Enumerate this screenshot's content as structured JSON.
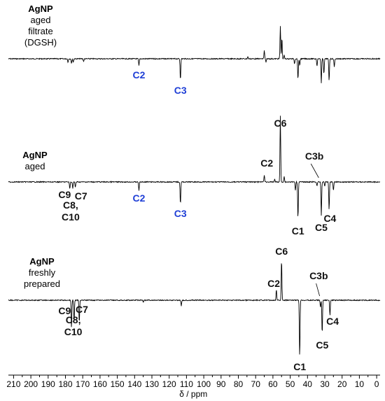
{
  "chart_data": {
    "type": "line",
    "xlabel": "δ / ppm",
    "xlim": [
      213,
      -2
    ],
    "x_reversed": true,
    "x_ticks": [
      210,
      200,
      190,
      180,
      170,
      160,
      150,
      140,
      130,
      120,
      110,
      100,
      90,
      80,
      70,
      60,
      50,
      40,
      30,
      20,
      10,
      0
    ],
    "colors": {
      "trace": "#000000",
      "free_ligand_label": "#1f3fd6",
      "peak_label": "#111111"
    },
    "spectra": [
      {
        "name_lines": [
          "AgNP",
          "aged",
          "filtrate",
          "(DGSH)"
        ],
        "peaks": [
          {
            "ppm": 178.5,
            "amp": -5
          },
          {
            "ppm": 176.5,
            "amp": -7
          },
          {
            "ppm": 175.5,
            "amp": -5
          },
          {
            "ppm": 169.5,
            "amp": -4
          },
          {
            "ppm": 137.5,
            "amp": -10
          },
          {
            "ppm": 113.5,
            "amp": -30
          },
          {
            "ppm": 74.5,
            "amp": 3
          },
          {
            "ppm": 65.0,
            "amp": 12
          },
          {
            "ppm": 64.0,
            "amp": -5
          },
          {
            "ppm": 55.7,
            "amp": 47
          },
          {
            "ppm": 54.8,
            "amp": 30
          },
          {
            "ppm": 53.5,
            "amp": 5
          },
          {
            "ppm": 47.5,
            "amp": -7
          },
          {
            "ppm": 45.5,
            "amp": -30
          },
          {
            "ppm": 44.5,
            "amp": -10
          },
          {
            "ppm": 34.5,
            "amp": -10
          },
          {
            "ppm": 32.0,
            "amp": -35
          },
          {
            "ppm": 30.5,
            "amp": -22
          },
          {
            "ppm": 27.5,
            "amp": -32
          },
          {
            "ppm": 24.5,
            "amp": -12
          }
        ],
        "labels": [
          {
            "text": "C2",
            "ppm": 137.5,
            "color": "#1f3fd6"
          },
          {
            "text": "C3",
            "ppm": 113.5,
            "color": "#1f3fd6"
          }
        ]
      },
      {
        "name_lines": [
          "AgNP",
          "aged"
        ],
        "peaks": [
          {
            "ppm": 177.5,
            "amp": -10
          },
          {
            "ppm": 175.8,
            "amp": -9
          },
          {
            "ppm": 174.3,
            "amp": -8
          },
          {
            "ppm": 137.5,
            "amp": -12
          },
          {
            "ppm": 113.5,
            "amp": -32
          },
          {
            "ppm": 65.0,
            "amp": 10
          },
          {
            "ppm": 59.0,
            "amp": 4
          },
          {
            "ppm": 55.7,
            "amp": 95
          },
          {
            "ppm": 53.5,
            "amp": 8
          },
          {
            "ppm": 47.0,
            "amp": -12
          },
          {
            "ppm": 45.5,
            "amp": -52
          },
          {
            "ppm": 34.5,
            "amp": -6
          },
          {
            "ppm": 32.0,
            "amp": -48
          },
          {
            "ppm": 30.0,
            "amp": -6
          },
          {
            "ppm": 27.5,
            "amp": -40
          },
          {
            "ppm": 25.0,
            "amp": -12
          }
        ],
        "labels": [
          {
            "text": "C2",
            "ppm": 137.5,
            "color": "#1f3fd6"
          },
          {
            "text": "C3",
            "ppm": 113.5,
            "color": "#1f3fd6"
          },
          {
            "text": "C9",
            "ppm": 180.5,
            "color": "#111111"
          },
          {
            "text": "C7",
            "ppm": 171.0,
            "color": "#111111"
          },
          {
            "text": "C8,",
            "ppm": 177.0,
            "color": "#111111"
          },
          {
            "text": "C10",
            "ppm": 177.0,
            "color": "#111111"
          },
          {
            "text": "C2",
            "ppm": 63.5,
            "color": "#111111"
          },
          {
            "text": "C6",
            "ppm": 55.7,
            "color": "#111111"
          },
          {
            "text": "C3b",
            "ppm": 36.0,
            "color": "#111111"
          },
          {
            "text": "C1",
            "ppm": 45.5,
            "color": "#111111"
          },
          {
            "text": "C5",
            "ppm": 32.0,
            "color": "#111111"
          },
          {
            "text": "C4",
            "ppm": 27.0,
            "color": "#111111"
          }
        ]
      },
      {
        "name_lines": [
          "AgNP",
          "freshly",
          "prepared"
        ],
        "peaks": [
          {
            "ppm": 176.5,
            "amp": -40
          },
          {
            "ppm": 175.0,
            "amp": -30
          },
          {
            "ppm": 172.0,
            "amp": -32
          },
          {
            "ppm": 135.0,
            "amp": -3
          },
          {
            "ppm": 113.0,
            "amp": -8
          },
          {
            "ppm": 58.0,
            "amp": 16
          },
          {
            "ppm": 55.0,
            "amp": 58
          },
          {
            "ppm": 44.5,
            "amp": -82
          },
          {
            "ppm": 32.5,
            "amp": -10
          },
          {
            "ppm": 31.5,
            "amp": -48
          },
          {
            "ppm": 27.0,
            "amp": -22
          }
        ],
        "labels": [
          {
            "text": "C9",
            "ppm": 180.5,
            "color": "#111111"
          },
          {
            "text": "C7",
            "ppm": 170.5,
            "color": "#111111"
          },
          {
            "text": "C8,",
            "ppm": 175.5,
            "color": "#111111"
          },
          {
            "text": "C10",
            "ppm": 175.5,
            "color": "#111111"
          },
          {
            "text": "C2",
            "ppm": 59.5,
            "color": "#111111"
          },
          {
            "text": "C6",
            "ppm": 55.0,
            "color": "#111111"
          },
          {
            "text": "C3b",
            "ppm": 33.5,
            "color": "#111111"
          },
          {
            "text": "C4",
            "ppm": 25.5,
            "color": "#111111"
          },
          {
            "text": "C5",
            "ppm": 31.5,
            "color": "#111111"
          },
          {
            "text": "C1",
            "ppm": 44.5,
            "color": "#111111"
          }
        ]
      }
    ]
  }
}
